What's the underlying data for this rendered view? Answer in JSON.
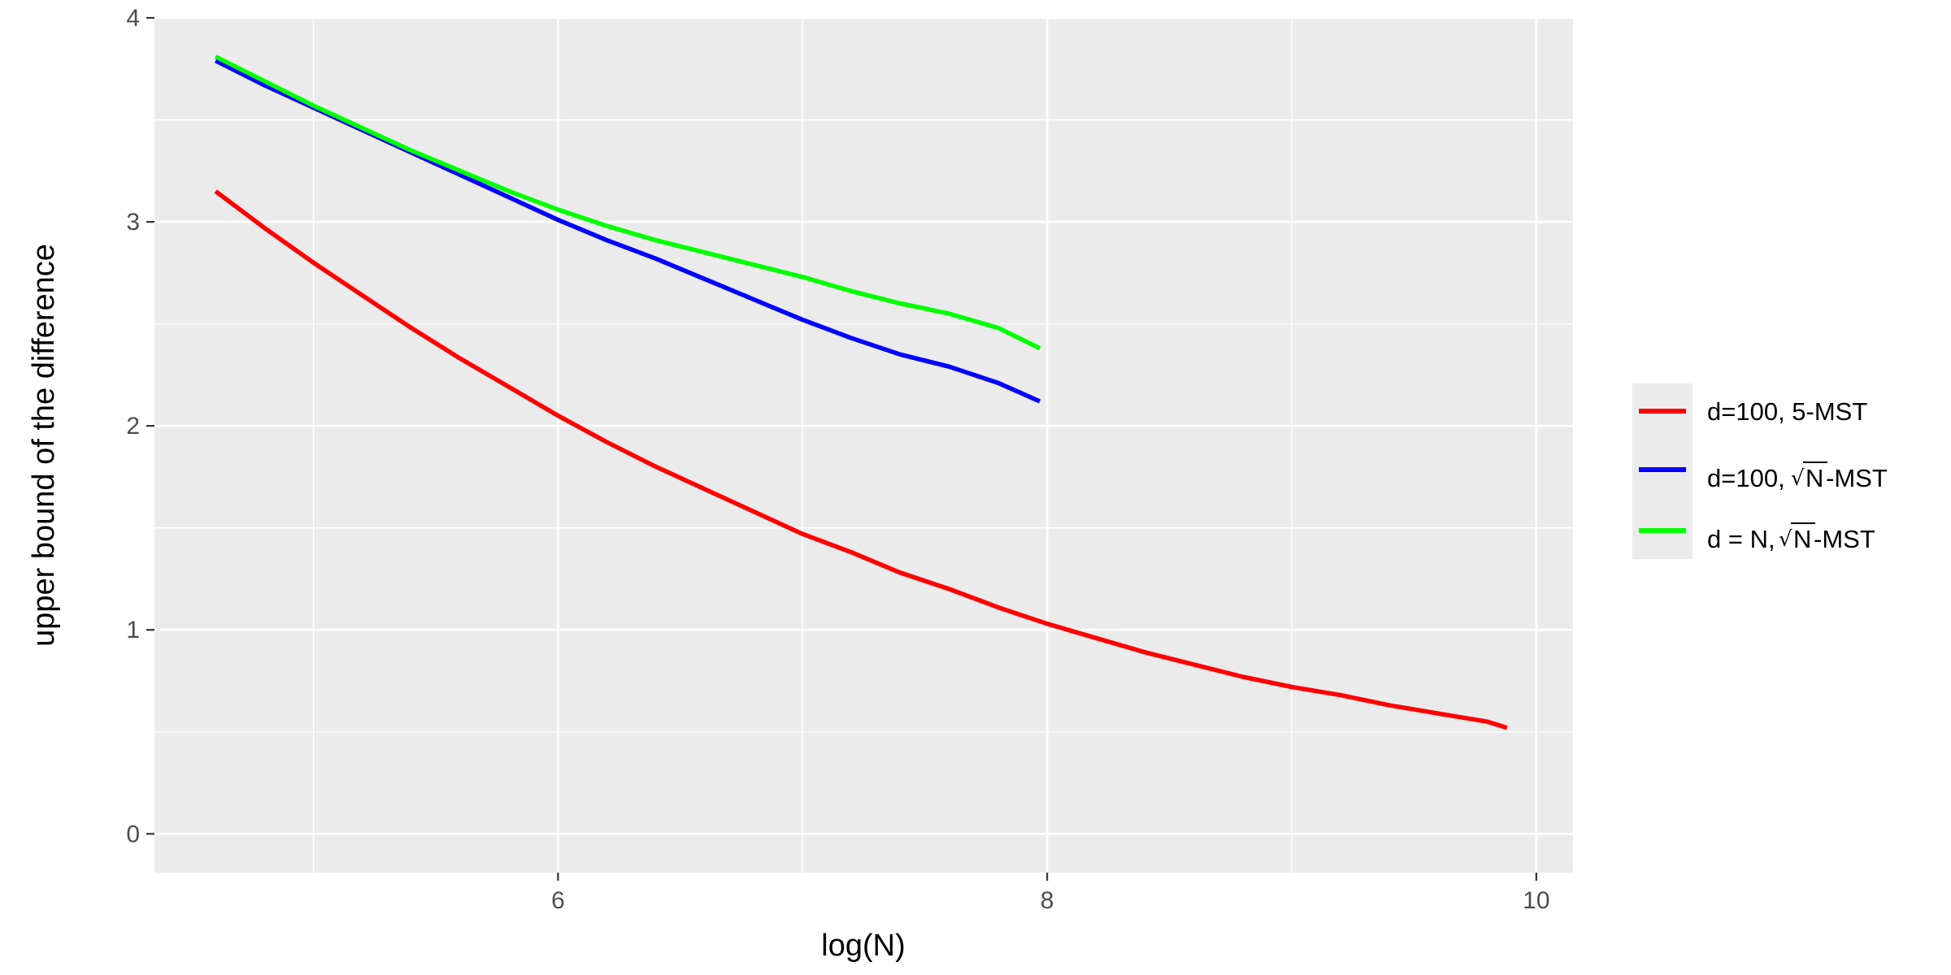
{
  "chart_data": {
    "type": "line",
    "xlabel": "log(N)",
    "ylabel": "upper bound of the difference",
    "xlim": [
      4.35,
      10.15
    ],
    "ylim": [
      -0.19,
      4.0
    ],
    "x_ticks": [
      6,
      8,
      10
    ],
    "x_tick_labels": [
      "6",
      "8",
      "10"
    ],
    "x_minor_ticks": [
      5,
      7,
      9
    ],
    "y_ticks": [
      0,
      1,
      2,
      3,
      4
    ],
    "y_tick_labels": [
      "0",
      "1",
      "2",
      "3",
      "4"
    ],
    "y_minor_ticks": [
      0.5,
      1.5,
      2.5,
      3.5
    ],
    "grid": true,
    "legend_position": "right",
    "series": [
      {
        "name": "d=100, 5-MST",
        "color": "#FF0000",
        "points": [
          [
            4.6,
            3.15
          ],
          [
            4.8,
            2.97
          ],
          [
            5.0,
            2.8
          ],
          [
            5.2,
            2.64
          ],
          [
            5.4,
            2.48
          ],
          [
            5.6,
            2.33
          ],
          [
            5.8,
            2.19
          ],
          [
            6.0,
            2.05
          ],
          [
            6.2,
            1.92
          ],
          [
            6.4,
            1.8
          ],
          [
            6.6,
            1.69
          ],
          [
            6.8,
            1.58
          ],
          [
            7.0,
            1.47
          ],
          [
            7.2,
            1.38
          ],
          [
            7.4,
            1.28
          ],
          [
            7.6,
            1.2
          ],
          [
            7.8,
            1.11
          ],
          [
            8.0,
            1.03
          ],
          [
            8.2,
            0.96
          ],
          [
            8.4,
            0.89
          ],
          [
            8.6,
            0.83
          ],
          [
            8.8,
            0.77
          ],
          [
            9.0,
            0.72
          ],
          [
            9.2,
            0.68
          ],
          [
            9.4,
            0.63
          ],
          [
            9.6,
            0.59
          ],
          [
            9.8,
            0.55
          ],
          [
            9.88,
            0.52
          ]
        ]
      },
      {
        "name_prefix": "d=100, ",
        "name_sqrt": "N",
        "name_suffix": "-MST",
        "color": "#0000FF",
        "points": [
          [
            4.6,
            3.79
          ],
          [
            4.8,
            3.67
          ],
          [
            5.0,
            3.56
          ],
          [
            5.2,
            3.45
          ],
          [
            5.4,
            3.34
          ],
          [
            5.6,
            3.23
          ],
          [
            5.8,
            3.12
          ],
          [
            6.0,
            3.01
          ],
          [
            6.2,
            2.91
          ],
          [
            6.4,
            2.82
          ],
          [
            6.6,
            2.72
          ],
          [
            6.8,
            2.62
          ],
          [
            7.0,
            2.52
          ],
          [
            7.2,
            2.43
          ],
          [
            7.4,
            2.35
          ],
          [
            7.6,
            2.29
          ],
          [
            7.8,
            2.21
          ],
          [
            7.97,
            2.12
          ]
        ]
      },
      {
        "name_prefix": "d = N, ",
        "name_sqrt": "N",
        "name_suffix": "-MST",
        "color": "#00FF00",
        "points": [
          [
            4.6,
            3.81
          ],
          [
            4.8,
            3.69
          ],
          [
            5.0,
            3.57
          ],
          [
            5.2,
            3.46
          ],
          [
            5.4,
            3.35
          ],
          [
            5.6,
            3.25
          ],
          [
            5.8,
            3.15
          ],
          [
            6.0,
            3.06
          ],
          [
            6.2,
            2.98
          ],
          [
            6.4,
            2.91
          ],
          [
            6.6,
            2.85
          ],
          [
            6.8,
            2.79
          ],
          [
            7.0,
            2.73
          ],
          [
            7.2,
            2.66
          ],
          [
            7.4,
            2.6
          ],
          [
            7.6,
            2.55
          ],
          [
            7.8,
            2.48
          ],
          [
            7.97,
            2.38
          ]
        ]
      }
    ]
  }
}
